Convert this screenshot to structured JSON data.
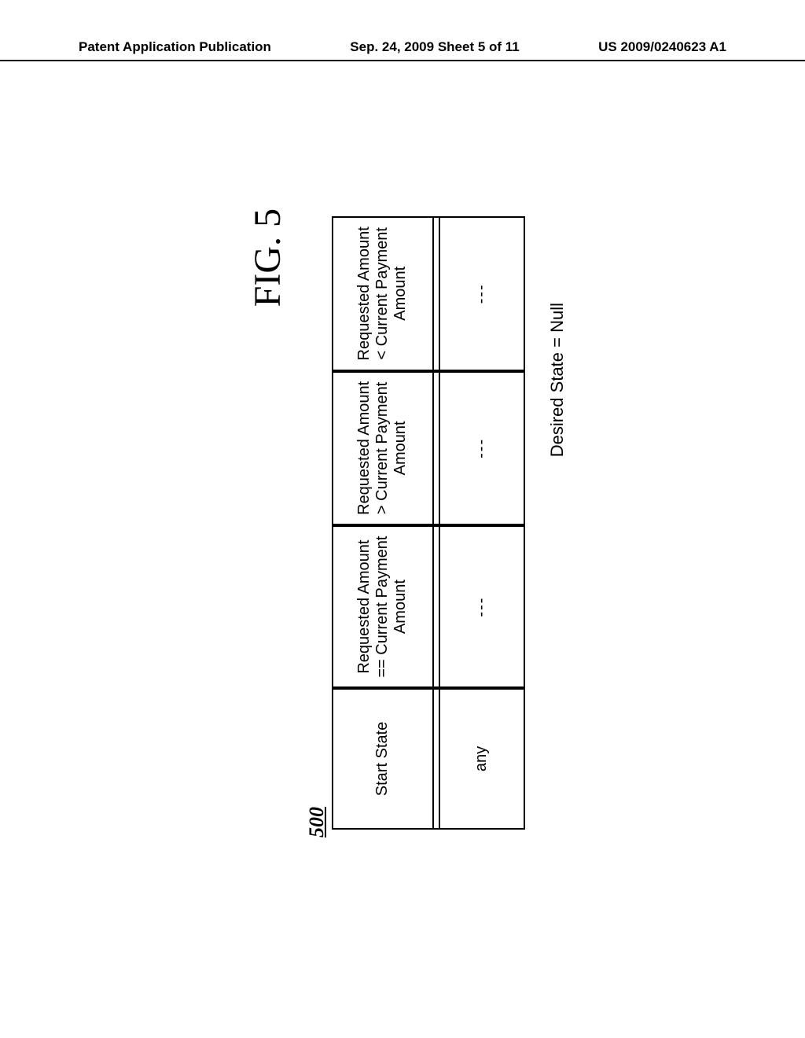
{
  "header": {
    "left": "Patent Application Publication",
    "center": "Sep. 24, 2009  Sheet 5 of 11",
    "right": "US 2009/0240623 A1"
  },
  "figure": {
    "label": "FIG. 5",
    "refnum": "500",
    "caption": "Desired State = Null",
    "table": {
      "headers": [
        "Start State",
        "Requested Amount\n== Current Payment\nAmount",
        "Requested Amount\n> Current Payment\nAmount",
        "Requested Amount\n< Current Payment\nAmount"
      ],
      "row": [
        "any",
        "---",
        "---",
        "---"
      ]
    }
  }
}
